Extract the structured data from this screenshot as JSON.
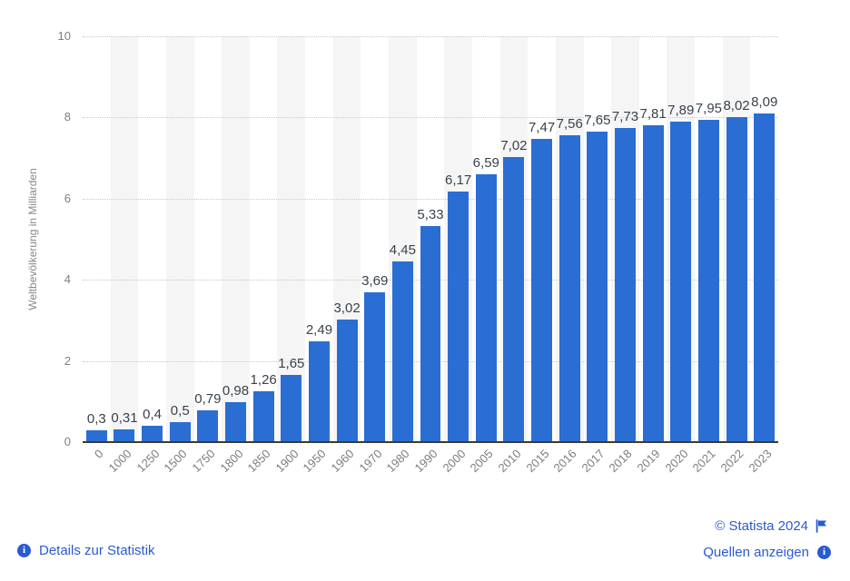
{
  "colors": {
    "bar": "#2b6ed3",
    "column_band": "#f5f5f5",
    "gridline": "#c9c9c9",
    "axis_line": "#3a3a3a",
    "tick_text": "#7d7d7d",
    "value_label_text": "#39424c",
    "link": "#2a5ad4"
  },
  "chart_data": {
    "type": "bar",
    "title": "",
    "xlabel": "",
    "ylabel": "Weltbevölkerung in Milliarden",
    "ylim": [
      0,
      10
    ],
    "yticks": [
      0,
      2,
      4,
      6,
      8,
      10
    ],
    "grid": "horizontal-dotted",
    "legend": "none",
    "categories": [
      "0",
      "1000",
      "1250",
      "1500",
      "1750",
      "1800",
      "1850",
      "1900",
      "1950",
      "1960",
      "1970",
      "1980",
      "1990",
      "2000",
      "2005",
      "2010",
      "2015",
      "2016",
      "2017",
      "2018",
      "2019",
      "2020",
      "2021",
      "2022",
      "2023"
    ],
    "values": [
      0.3,
      0.31,
      0.4,
      0.5,
      0.79,
      0.98,
      1.26,
      1.65,
      2.49,
      3.02,
      3.69,
      4.45,
      5.33,
      6.17,
      6.59,
      7.02,
      7.47,
      7.56,
      7.65,
      7.73,
      7.81,
      7.89,
      7.95,
      8.02,
      8.09
    ],
    "value_labels": [
      "0,3",
      "0,31",
      "0,4",
      "0,5",
      "0,79",
      "0,98",
      "1,26",
      "1,65",
      "2,49",
      "3,02",
      "3,69",
      "4,45",
      "5,33",
      "6,17",
      "6,59",
      "7,02",
      "7,47",
      "7,56",
      "7,65",
      "7,73",
      "7,81",
      "7,89",
      "7,95",
      "8,02",
      "8,09"
    ]
  },
  "footer": {
    "details_link": "Details zur Statistik",
    "sources_link": "Quellen anzeigen",
    "copyright": "© Statista 2024"
  },
  "icons": {
    "info": "i",
    "flag": "⚑"
  }
}
